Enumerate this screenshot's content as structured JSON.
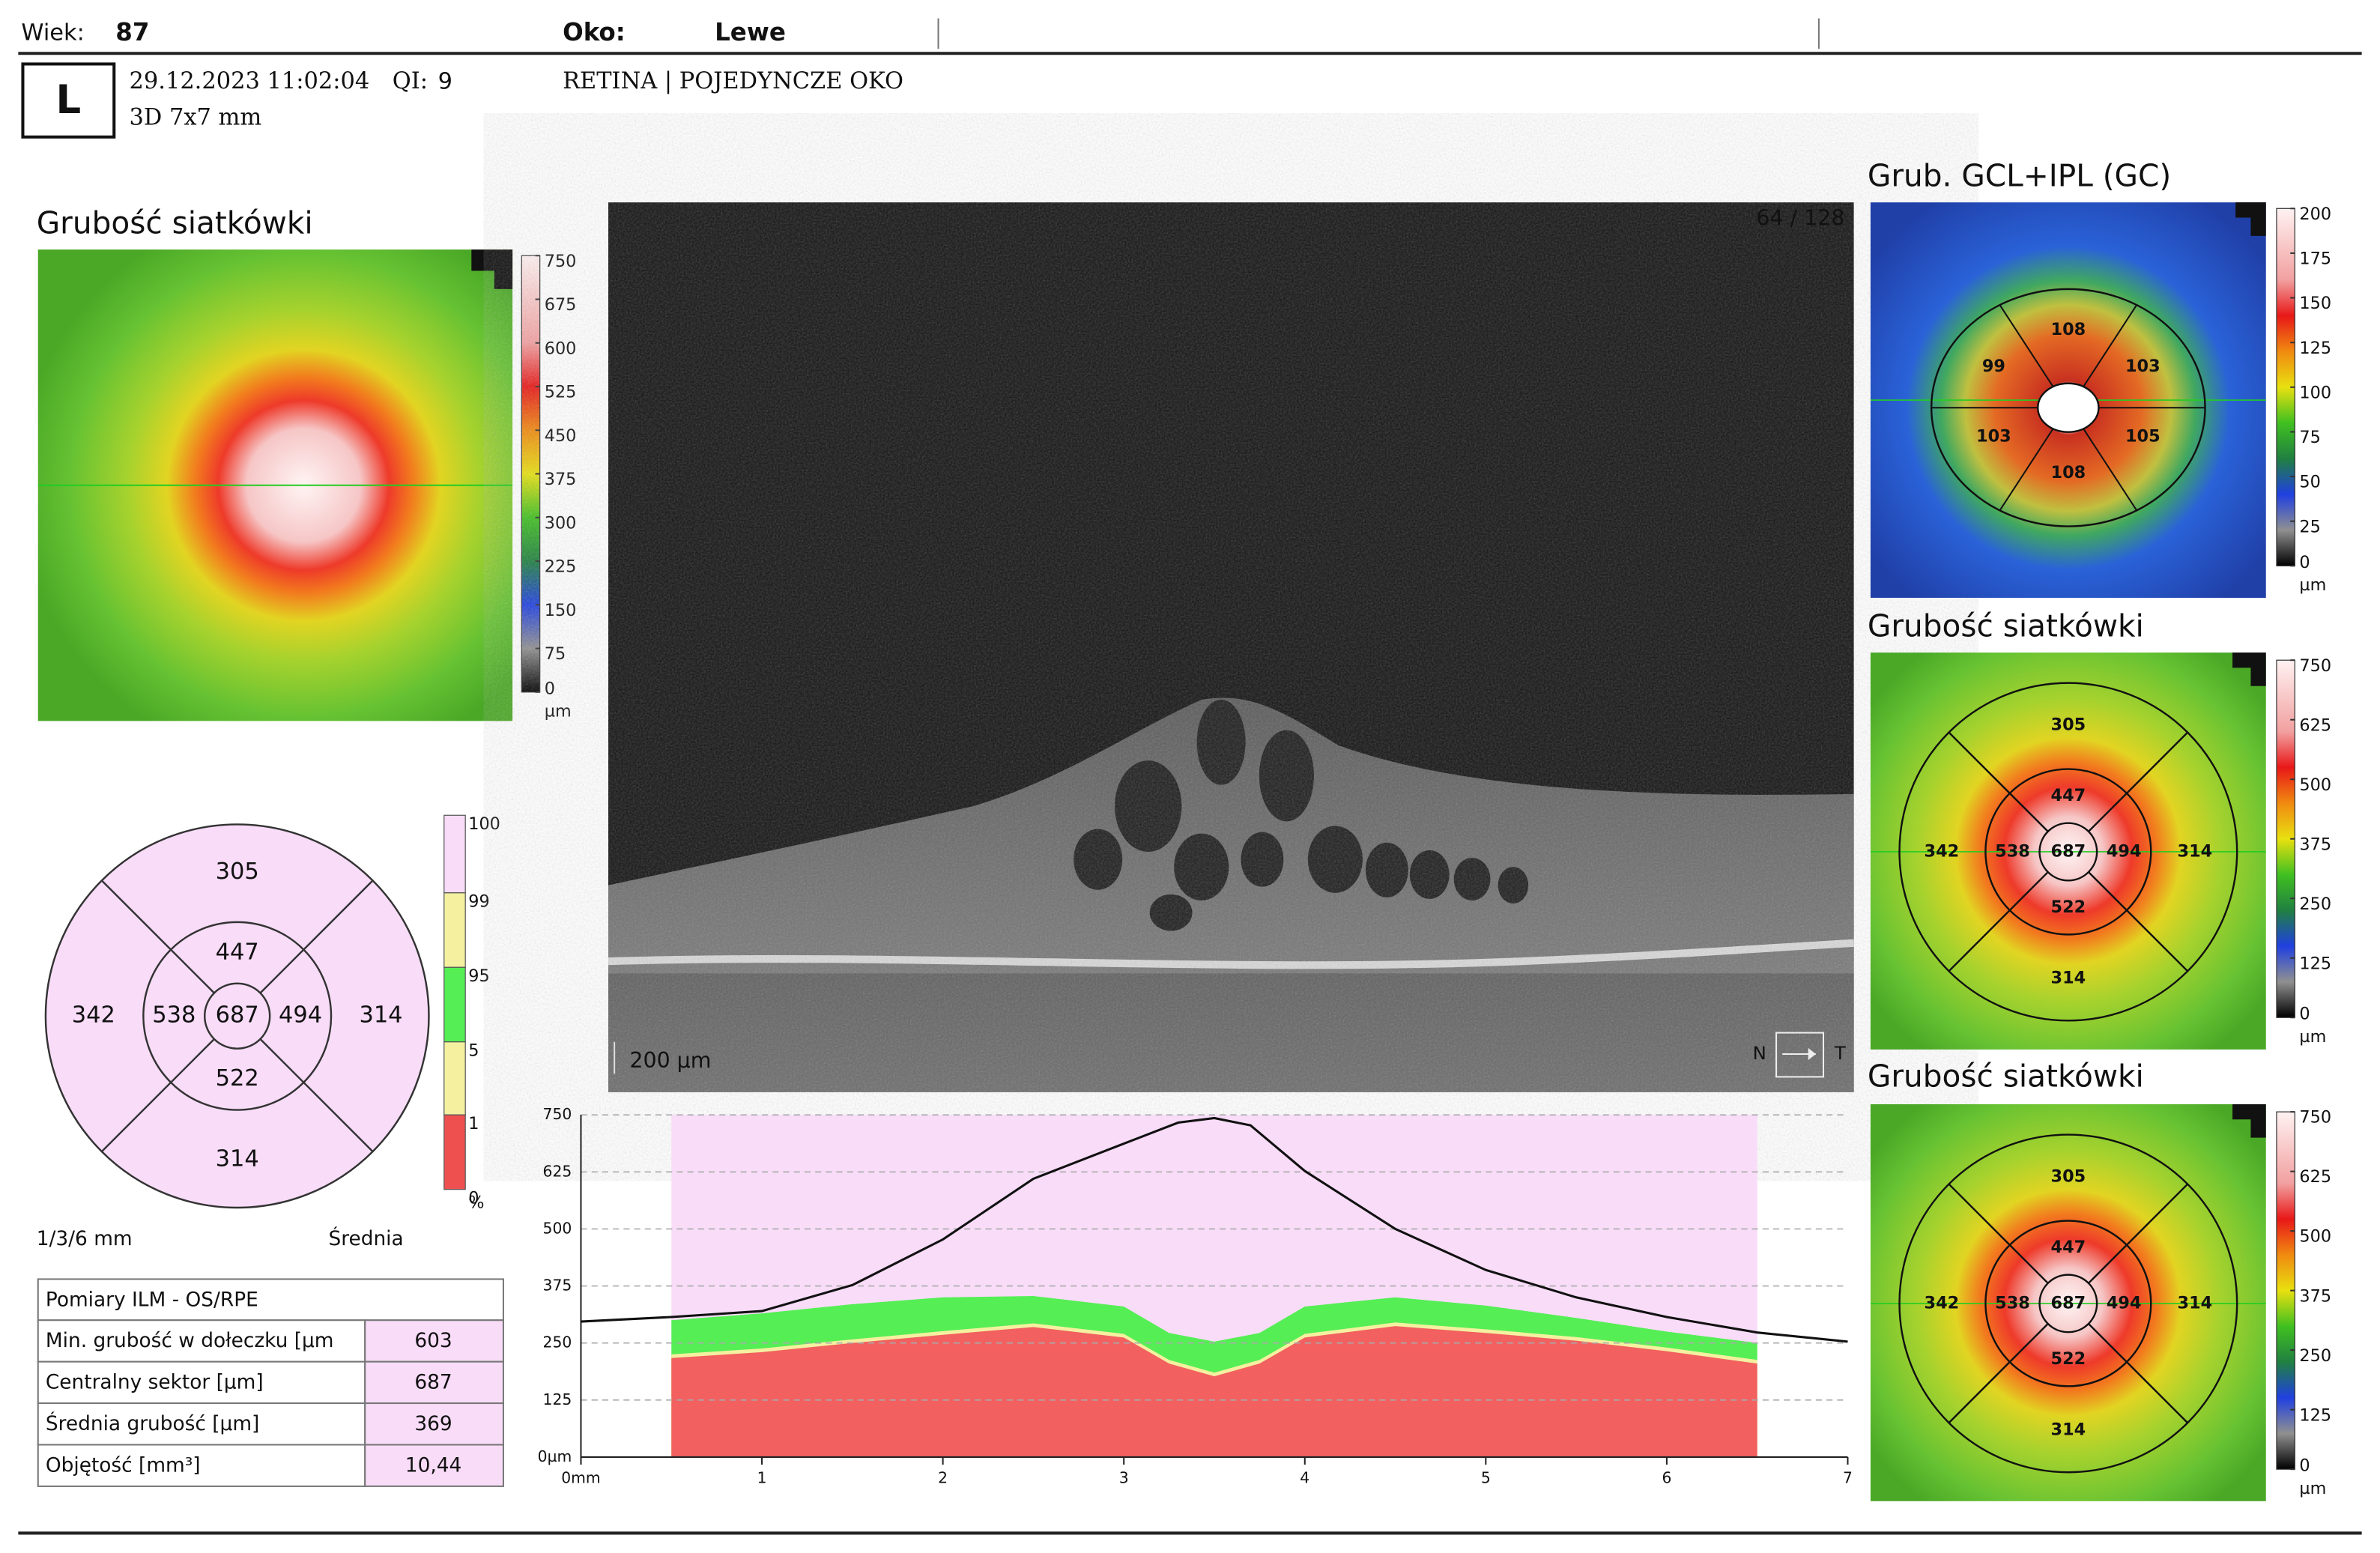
{
  "header": {
    "age_label": "Wiek:",
    "age": "87",
    "eye_label": "Oko:",
    "eye": "Lewe",
    "eye_code": "L",
    "datetime": "29.12.2023 11:02:04",
    "qi_label": "QI:",
    "qi": "9",
    "scan": "3D  7x7 mm",
    "protocol": "RETINA | POJEDYNCZE OKO"
  },
  "thickness_map": {
    "title": "Grubość siatkówki",
    "colorbar": {
      "ticks": [
        750,
        675,
        600,
        525,
        450,
        375,
        300,
        225,
        150,
        75,
        0
      ],
      "unit": "µm"
    }
  },
  "etdrs": {
    "sectors": {
      "outer_superior": 305,
      "inner_superior": 447,
      "outer_nasal": 342,
      "inner_nasal": 538,
      "center": 687,
      "inner_temporal": 494,
      "outer_temporal": 314,
      "inner_inferior": 522,
      "outer_inferior": 314
    },
    "legend": {
      "ticks": [
        100,
        99,
        95,
        5,
        1,
        0
      ],
      "unit": "%"
    },
    "grid_label": "1/3/6 mm",
    "mode": "Średnia"
  },
  "measurements": {
    "title": "Pomiary ILM - OS/RPE",
    "rows": [
      {
        "label": "Min. grubość w dołeczku [µm",
        "value": "603"
      },
      {
        "label": "Centralny sektor [µm]",
        "value": "687"
      },
      {
        "label": "Średnia grubość [µm]",
        "value": "369"
      },
      {
        "label": "Objętość [mm³]",
        "value": "10,44"
      }
    ]
  },
  "bscan": {
    "frame": "64 / 128",
    "scale_bar": "200 µm",
    "left": "N",
    "right": "T"
  },
  "profile": {
    "type": "line",
    "color": "#111111",
    "x": [
      0,
      0.5,
      1,
      1.5,
      2,
      2.5,
      3,
      3.3,
      3.5,
      3.7,
      4,
      4.5,
      5,
      5.5,
      6,
      6.5,
      7
    ],
    "values": [
      297,
      307,
      320,
      377,
      477,
      610,
      687,
      733,
      743,
      727,
      627,
      500,
      410,
      350,
      307,
      273,
      253
    ],
    "xlim": [
      0,
      7
    ],
    "ylim": [
      0,
      750
    ],
    "xticks": [
      {
        "value": 0,
        "label": "0mm"
      },
      1,
      2,
      3,
      4,
      5,
      6,
      7
    ],
    "yticks": [
      {
        "value": 0,
        "label": "0µm"
      },
      125,
      250,
      375,
      500,
      625,
      750
    ],
    "normative": {
      "x": [
        0.5,
        1,
        1.5,
        2,
        2.5,
        3,
        3.25,
        3.5,
        3.75,
        4,
        4.5,
        5,
        5.5,
        6,
        6.5
      ],
      "p1": [
        217,
        230,
        250,
        268,
        285,
        262,
        205,
        177,
        205,
        262,
        287,
        272,
        255,
        232,
        205
      ],
      "p5": [
        225,
        238,
        258,
        276,
        293,
        270,
        213,
        185,
        213,
        270,
        295,
        280,
        263,
        240,
        213
      ],
      "p95": [
        300,
        315,
        335,
        350,
        353,
        330,
        272,
        253,
        272,
        330,
        350,
        332,
        305,
        275,
        250
      ],
      "colors": {
        "p1": "#f26060",
        "p5": "#f4f0a0",
        "p95": "#55ee55",
        "above": "#f8dcf8"
      }
    }
  },
  "gc_map": {
    "title": "Grub. GCL+IPL (GC)",
    "colorbar": {
      "ticks": [
        200,
        175,
        150,
        125,
        100,
        75,
        50,
        25,
        0
      ],
      "unit": "µm"
    },
    "sectors": {
      "superior": 108,
      "superonasal": 99,
      "superotemporal": 103,
      "inferonasal": 103,
      "inferotemporal": 105,
      "inferior": 108
    }
  },
  "retina_maps": [
    {
      "title": "Grubość siatkówki",
      "colorbar": {
        "ticks": [
          750,
          625,
          500,
          375,
          250,
          125,
          0
        ],
        "unit": "µm"
      },
      "sectors": {
        "outer_superior": 305,
        "inner_superior": 447,
        "outer_nasal": 342,
        "inner_nasal": 538,
        "center": 687,
        "inner_temporal": 494,
        "outer_temporal": 314,
        "inner_inferior": 522,
        "outer_inferior": 314
      }
    },
    {
      "title": "Grubość siatkówki",
      "colorbar": {
        "ticks": [
          750,
          625,
          500,
          375,
          250,
          125,
          0
        ],
        "unit": "µm"
      },
      "sectors": {
        "outer_superior": 305,
        "inner_superior": 447,
        "outer_nasal": 342,
        "inner_nasal": 538,
        "center": 687,
        "inner_temporal": 494,
        "outer_temporal": 314,
        "inner_inferior": 522,
        "outer_inferior": 314
      }
    }
  ]
}
